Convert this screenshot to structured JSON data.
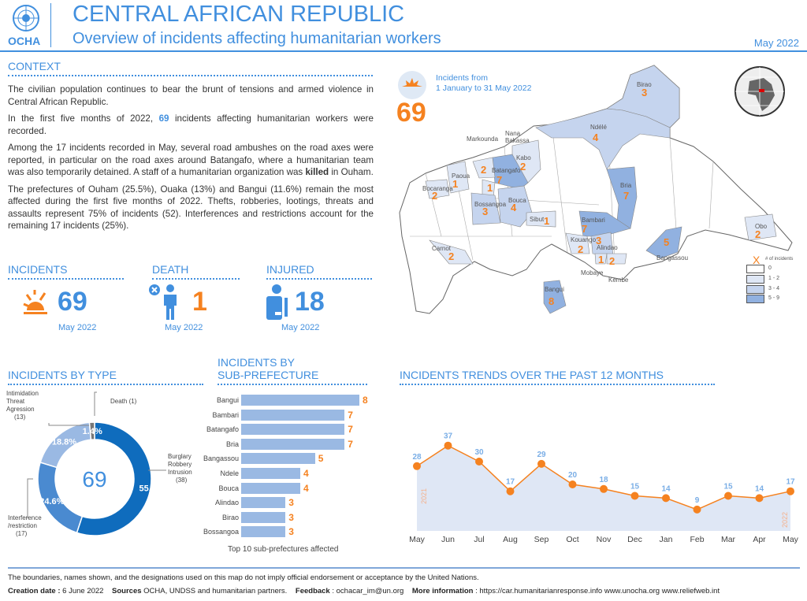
{
  "header": {
    "org": "OCHA",
    "title": "CENTRAL AFRICAN REPUBLIC",
    "subtitle": "Overview of incidents affecting humanitarian workers",
    "date": "May 2022"
  },
  "context": {
    "heading": "CONTEXT",
    "p1": "The civilian population continues to bear the brunt of tensions and armed violence in Central African Republic.",
    "p2a": "In the first five months of 2022, ",
    "p2b": "69",
    "p2c": " incidents affecting humanitarian workers were recorded.",
    "p3a": "Among the 17 incidents recorded in May, several road ambushes on the road axes were reported, in particular on the road axes around Batangafo, where a humanitarian team was also temporarily detained. A staff of a humanitarian organization was ",
    "p3b": "killed",
    "p3c": " in Ouham.",
    "p4": "The prefectures of Ouham (25.5%),  Ouaka (13%) and Bangui (11.6%) remain the most affected during the first five months of 2022. Thefts, robberies, lootings, threats and assaults represent 75% of incidents (52). Interferences and restrictions account for the remaining 17 incidents (25%)."
  },
  "kpis": [
    {
      "label": "INCIDENTS",
      "value": "69",
      "period": "May 2022",
      "icon": "explosion-icon"
    },
    {
      "label": "DEATH",
      "value": "1",
      "period": "May 2022",
      "icon": "person-killed-icon"
    },
    {
      "label": "INJURED",
      "value": "18",
      "period": "May 2022",
      "icon": "injured-person-icon"
    }
  ],
  "map": {
    "caption_line1": "Incidents from",
    "caption_line2": "1 January to 31 May 2022",
    "total": "69",
    "legend": {
      "marker": "X",
      "title": "# of incidents",
      "classes": [
        {
          "label": "0",
          "color": "#ffffff"
        },
        {
          "label": "1 - 2",
          "color": "#dfe7f5"
        },
        {
          "label": "3 - 4",
          "color": "#c5d4ee"
        },
        {
          "label": "5 - 9",
          "color": "#91b1e0"
        }
      ]
    },
    "regions": [
      {
        "name": "Birao",
        "count": "3"
      },
      {
        "name": "Ndélé",
        "count": "4"
      },
      {
        "name": "Kabo",
        "count": "2"
      },
      {
        "name": "Batangafo",
        "count": "7"
      },
      {
        "name": "Paoua",
        "count": "1"
      },
      {
        "name": "Bocaranga",
        "count": "2"
      },
      {
        "name": "Markounda",
        "count": "2"
      },
      {
        "name": "Nana\nBakassa",
        "count": "1"
      },
      {
        "name": "Bossangoa",
        "count": "3"
      },
      {
        "name": "Bouca",
        "count": "4"
      },
      {
        "name": "Sibut",
        "count": "1"
      },
      {
        "name": "Bria",
        "count": "7"
      },
      {
        "name": "Bambari",
        "count": "7"
      },
      {
        "name": "Kouango",
        "count": "2"
      },
      {
        "name": "Alindao",
        "count": "3"
      },
      {
        "name": "Mobaye",
        "count": "1"
      },
      {
        "name": "Kembe",
        "count": "2"
      },
      {
        "name": "Bangassou",
        "count": "5"
      },
      {
        "name": "Obo",
        "count": "2"
      },
      {
        "name": "Carnot",
        "count": "2"
      },
      {
        "name": "Bangui",
        "count": "8"
      }
    ]
  },
  "colors": {
    "accent": "#418fde",
    "orange": "#f58220"
  },
  "chart_data": [
    {
      "type": "pie",
      "title": "INCIDENTS BY TYPE",
      "center_label": "69",
      "slices": [
        {
          "label": "Burglary\nRobbery\nIntrusion\n(38)",
          "value": 38,
          "pct": "55.1%",
          "color": "#0f6cbd"
        },
        {
          "label": "Interference\n/restriction\n(17)",
          "value": 17,
          "pct": "24.6%",
          "color": "#4a8ad0"
        },
        {
          "label": "Intimidation\nThreat\nAgression\n(13)",
          "value": 13,
          "pct": "18.8%",
          "color": "#9ab9e3"
        },
        {
          "label": "Death (1)",
          "value": 1,
          "pct": "1.4%",
          "color": "#777777"
        }
      ]
    },
    {
      "type": "bar",
      "title": "INCIDENTS BY\nSUB-PREFECTURE",
      "caption": "Top 10 sub-prefectures affected",
      "categories": [
        "Bangui",
        "Bambari",
        "Batangafo",
        "Bria",
        "Bangassou",
        "Ndele",
        "Bouca",
        "Alindao",
        "Birao",
        "Bossangoa"
      ],
      "values": [
        8,
        7,
        7,
        7,
        5,
        4,
        4,
        3,
        3,
        3
      ]
    },
    {
      "type": "area",
      "title": "INCIDENTS TRENDS OVER THE PAST 12 MONTHS",
      "categories": [
        "May",
        "Jun",
        "Jul",
        "Aug",
        "Sep",
        "Oct",
        "Nov",
        "Dec",
        "Jan",
        "Feb",
        "Mar",
        "Apr",
        "May"
      ],
      "values": [
        28,
        37,
        30,
        17,
        29,
        20,
        18,
        15,
        14,
        9,
        15,
        14,
        17
      ],
      "year_labels": [
        "2021",
        "2022"
      ]
    }
  ],
  "footer": {
    "disclaimer": "The boundaries, names shown, and the designations used on this map do not imply official endorsement or acceptance by the United Nations.",
    "creation_label": "Creation date :",
    "creation": " 6 June 2022",
    "sources_label": "Sources",
    "sources": " OCHA, UNDSS and humanitarian partners.",
    "feedback_label": "Feedback",
    "feedback": " : ochacar_im@un.org",
    "more_label": "More information",
    "more": " : https://car.humanitarianresponse.info  www.unocha.org  www.reliefweb.int"
  }
}
